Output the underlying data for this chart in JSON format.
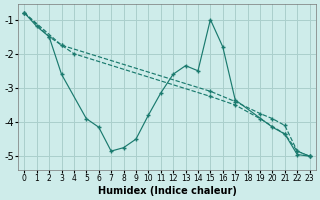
{
  "xlabel": "Humidex (Indice chaleur)",
  "background_color": "#ceecea",
  "grid_color": "#aacfcc",
  "line_color": "#1a7a6e",
  "xlim": [
    -0.5,
    23.5
  ],
  "ylim": [
    -5.4,
    -0.55
  ],
  "yticks": [
    -5,
    -4,
    -3,
    -2,
    -1
  ],
  "xticks": [
    0,
    1,
    2,
    3,
    4,
    5,
    6,
    7,
    8,
    9,
    10,
    11,
    12,
    13,
    14,
    15,
    16,
    17,
    18,
    19,
    20,
    21,
    22,
    23
  ],
  "series": [
    {
      "x": [
        0,
        1,
        2,
        3,
        5,
        6,
        7,
        8,
        9,
        10,
        11,
        12,
        13,
        14,
        15,
        16,
        17,
        20,
        21,
        22,
        23
      ],
      "y": [
        -0.8,
        -1.2,
        -1.5,
        -2.6,
        -3.9,
        -4.15,
        -4.85,
        -4.75,
        -4.5,
        -3.8,
        -3.15,
        -2.6,
        -2.35,
        -2.5,
        -1.0,
        -1.8,
        -3.35,
        -4.15,
        -4.35,
        -4.95,
        -5.0
      ],
      "linestyle": "-"
    },
    {
      "x": [
        0,
        2,
        3,
        15,
        17,
        19,
        20,
        21,
        22,
        23
      ],
      "y": [
        -0.8,
        -1.5,
        -1.75,
        -3.1,
        -3.4,
        -3.75,
        -3.9,
        -4.1,
        -4.85,
        -5.0
      ],
      "linestyle": "--"
    },
    {
      "x": [
        0,
        3,
        4,
        15,
        17,
        19,
        21,
        22,
        23
      ],
      "y": [
        -0.8,
        -1.75,
        -2.0,
        -3.25,
        -3.5,
        -3.9,
        -4.35,
        -4.85,
        -5.0
      ],
      "linestyle": "--"
    }
  ]
}
